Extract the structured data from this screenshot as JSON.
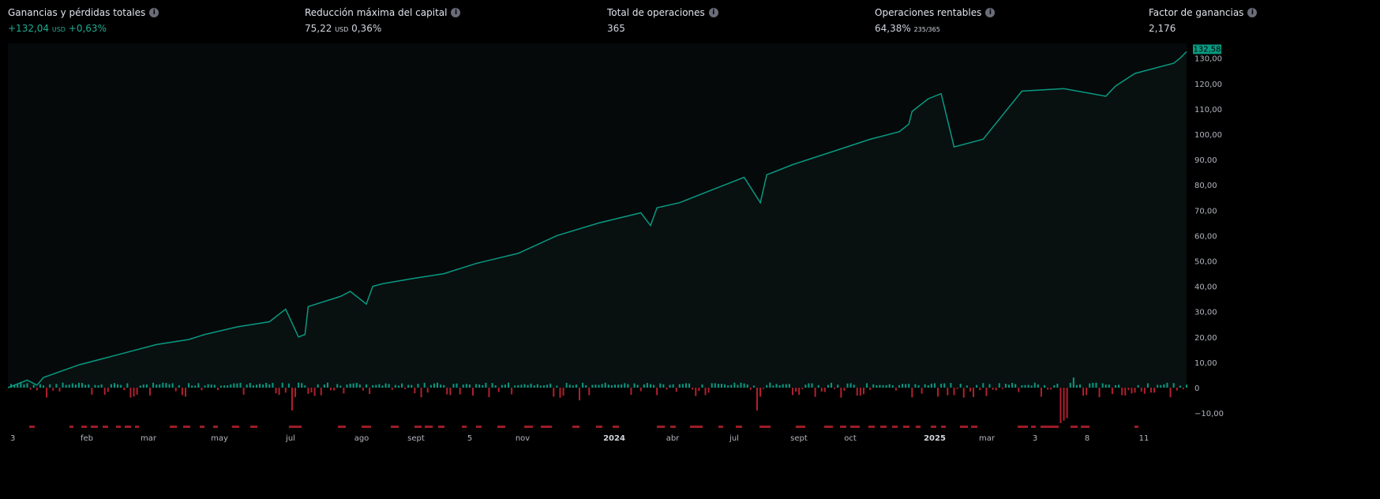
{
  "stats": [
    {
      "label": "Ganancias y pérdidas totales",
      "value": "+132,04",
      "unit": "USD",
      "extra": "+0,63%",
      "positive": true
    },
    {
      "label": "Reducción máxima del capital",
      "value": "75,22",
      "unit": "USD",
      "extra": "0,36%"
    },
    {
      "label": "Total de operaciones",
      "value": "365"
    },
    {
      "label": "Operaciones rentables",
      "value": "64,38%",
      "extra": "235/365"
    },
    {
      "label": "Factor de ganancias",
      "value": "2,176"
    }
  ],
  "colors": {
    "equity": "#089981",
    "profit_bar": "#089981",
    "loss_bar": "#b2202e",
    "drawdown_marker": "#9c1c26",
    "price_tag": "#089981",
    "background": "#000000"
  },
  "chart_data": {
    "type": "line",
    "ylim": [
      -15,
      135
    ],
    "y_ticks": [
      "130,00",
      "120,00",
      "110,00",
      "100,00",
      "90,00",
      "80,00",
      "70,00",
      "60,00",
      "50,00",
      "40,00",
      "30,00",
      "20,00",
      "10,00",
      "0",
      "−10,00"
    ],
    "y_tick_values": [
      130,
      120,
      110,
      100,
      90,
      80,
      70,
      60,
      50,
      40,
      30,
      20,
      10,
      0,
      -10
    ],
    "last_value_label": "132,58",
    "x_ticks": [
      {
        "label": "3"
      },
      {
        "label": "feb"
      },
      {
        "label": "mar"
      },
      {
        "label": "may"
      },
      {
        "label": "jul"
      },
      {
        "label": "ago"
      },
      {
        "label": "sept"
      },
      {
        "label": "5"
      },
      {
        "label": "nov"
      },
      {
        "label": "2024",
        "bold": true
      },
      {
        "label": "abr"
      },
      {
        "label": "jul"
      },
      {
        "label": "sept"
      },
      {
        "label": "oct"
      },
      {
        "label": "2025",
        "bold": true
      },
      {
        "label": "mar"
      },
      {
        "label": "3"
      },
      {
        "label": "8"
      },
      {
        "label": "11"
      }
    ],
    "x_trade_range": [
      0,
      365
    ],
    "equity": {
      "trade": [
        0,
        6,
        9,
        11,
        22,
        34,
        46,
        56,
        61,
        71,
        81,
        86,
        90,
        92,
        93,
        103,
        106,
        111,
        113,
        116,
        125,
        135,
        145,
        158,
        170,
        183,
        196,
        199,
        201,
        208,
        218,
        228,
        233,
        235,
        243,
        255,
        267,
        276,
        279,
        280,
        285,
        289,
        293,
        302,
        314,
        327,
        340,
        343,
        349,
        361,
        363,
        365
      ],
      "value": [
        0,
        3,
        1,
        4,
        9,
        13,
        17,
        19,
        21,
        24,
        26,
        31,
        20,
        21,
        32,
        36,
        38,
        33,
        40,
        41,
        43,
        45,
        49,
        53,
        60,
        65,
        69,
        64,
        71,
        73,
        78,
        83,
        73,
        84,
        88,
        93,
        98,
        101,
        104,
        109,
        114,
        116,
        95,
        98,
        117,
        118,
        115,
        119,
        124,
        128,
        130,
        132.58
      ]
    },
    "notable_trades": [
      {
        "trade": 88,
        "pnl": -9
      },
      {
        "trade": 177,
        "pnl": -5
      },
      {
        "trade": 232,
        "pnl": -9
      },
      {
        "trade": 326,
        "pnl": -14
      },
      {
        "trade": 327,
        "pnl": -13
      },
      {
        "trade": 328,
        "pnl": -12
      },
      {
        "trade": 330,
        "pnl": 4
      }
    ]
  }
}
